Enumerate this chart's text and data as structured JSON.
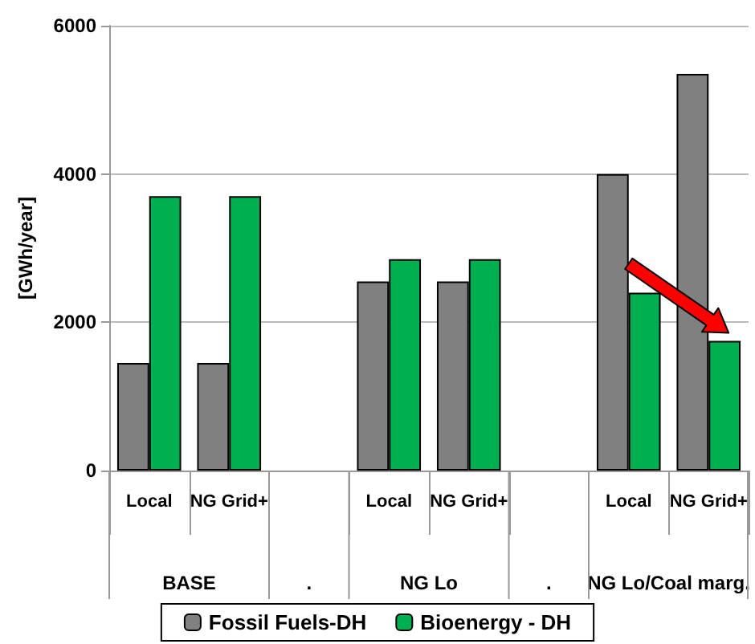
{
  "chart_data": {
    "type": "bar",
    "ylabel": "[GWh/year]",
    "categories": [
      "Local",
      "NG Grid+",
      null,
      "Local",
      "NG Grid+",
      null,
      "Local",
      "NG Grid+"
    ],
    "annotations": [
      "BASE",
      ".",
      "NG Lo",
      ".",
      "NG Lo/Coal marg."
    ],
    "series": [
      {
        "name": "Fossil Fuels-DH",
        "color": "#808080",
        "values": [
          1450,
          1450,
          null,
          2550,
          2550,
          null,
          4000,
          5350
        ]
      },
      {
        "name": "Bioenergy - DH",
        "color": "#00b050",
        "values": [
          3700,
          3700,
          null,
          2850,
          2850,
          null,
          2400,
          1750
        ]
      }
    ],
    "ylim": [
      0,
      6000
    ],
    "yticks": [
      0,
      2000,
      4000,
      6000
    ],
    "grid": "y",
    "legend": "bottom"
  }
}
